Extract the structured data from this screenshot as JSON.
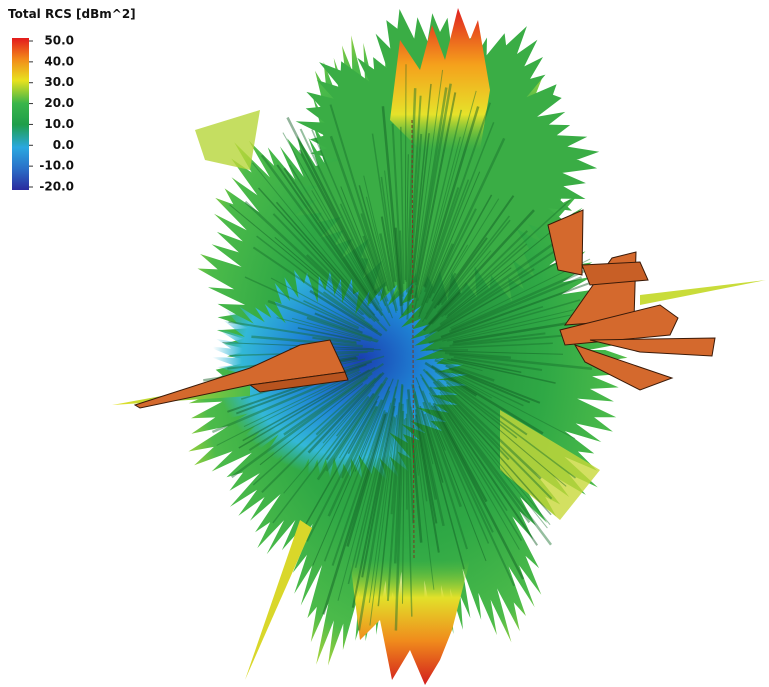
{
  "legend": {
    "title": "Total RCS [dBm^2]",
    "ticks": [
      {
        "value": 50,
        "label": "50.0"
      },
      {
        "value": 40,
        "label": "40.0"
      },
      {
        "value": 30,
        "label": "30.0"
      },
      {
        "value": 20,
        "label": "20.0"
      },
      {
        "value": 10,
        "label": "10.0"
      },
      {
        "value": 0,
        "label": "0.0"
      },
      {
        "value": -10,
        "label": "-10.0"
      },
      {
        "value": -20,
        "label": "-20.0"
      }
    ]
  }
}
